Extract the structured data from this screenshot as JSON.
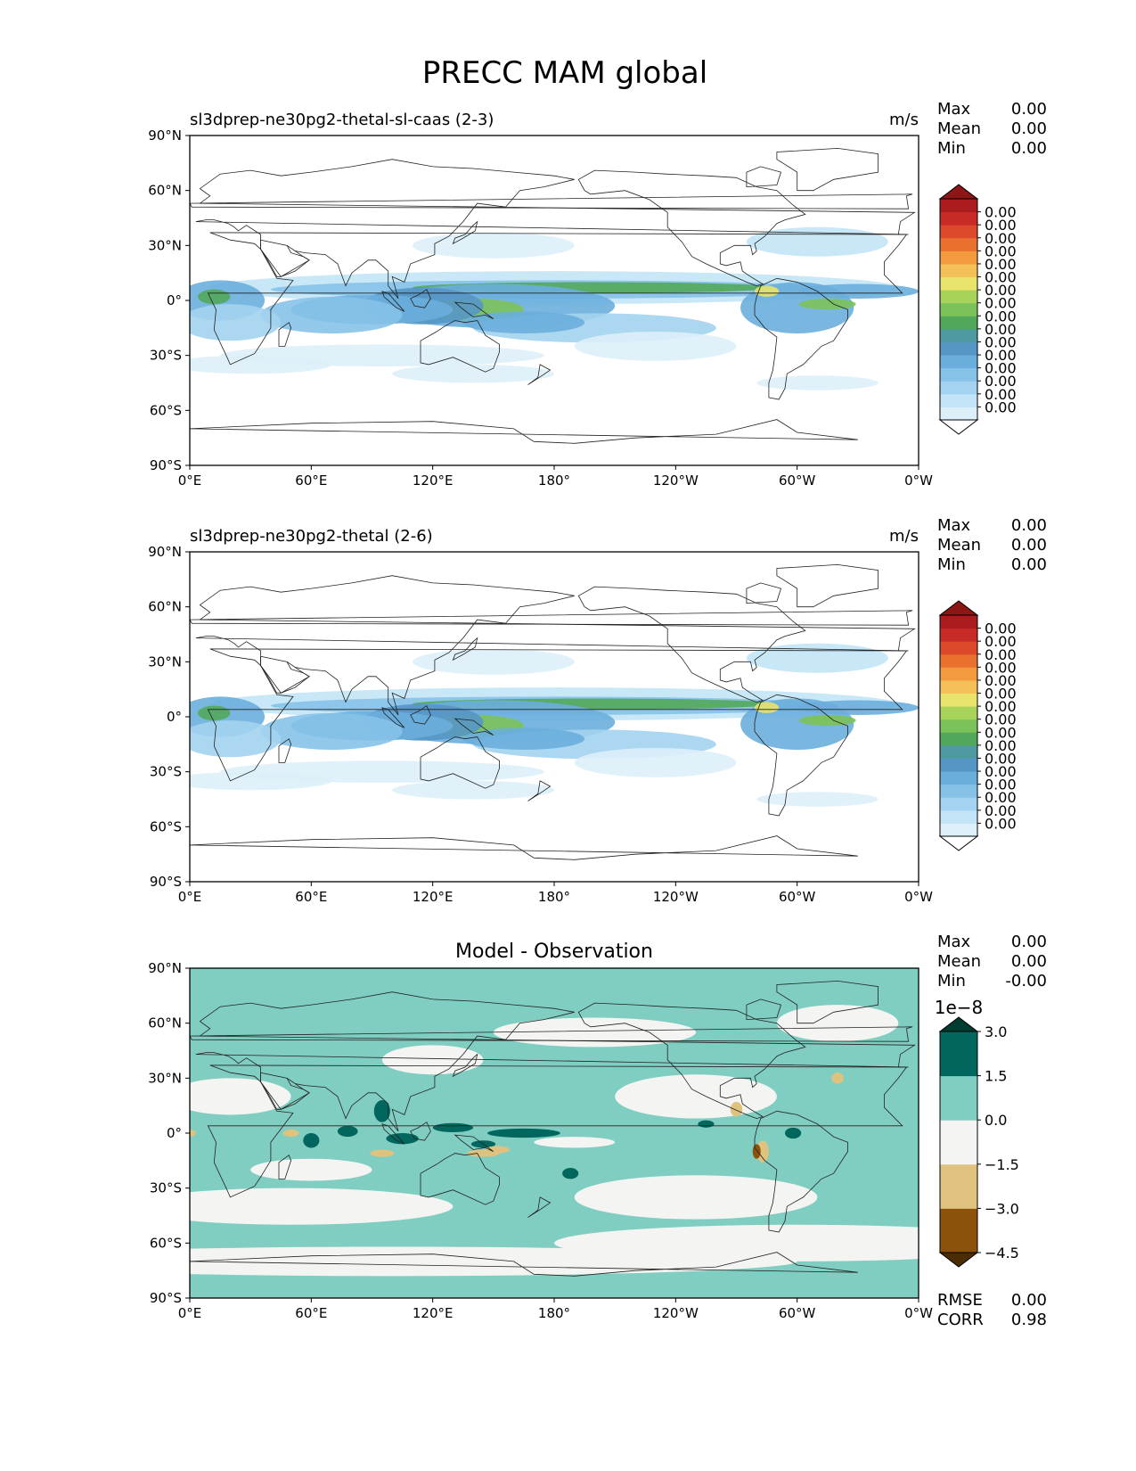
{
  "figure": {
    "title": "PRECC MAM global",
    "lon_ticks": [
      "0°E",
      "60°E",
      "120°E",
      "180°",
      "120°W",
      "60°W",
      "0°W"
    ],
    "lat_ticks": [
      "90°N",
      "60°N",
      "30°N",
      "0°",
      "30°S",
      "60°S",
      "90°S"
    ]
  },
  "panels": [
    {
      "title_left": "sl3dprep-ne30pg2-thetal-sl-caas (2-3)",
      "title_center": "",
      "units": "m/s",
      "stats": [
        {
          "label": "Max",
          "value": "0.00"
        },
        {
          "label": "Mean",
          "value": "0.00"
        },
        {
          "label": "Min",
          "value": "0.00"
        }
      ],
      "colorbar": {
        "offset_label": "",
        "colors": [
          "#ffffff",
          "#ddf0fa",
          "#c2e4f6",
          "#a3d3f0",
          "#86c2e8",
          "#6aaedd",
          "#5596c6",
          "#4e9aa0",
          "#52a85a",
          "#7cc25a",
          "#a8d35a",
          "#e8e36a",
          "#f6c058",
          "#f39a3f",
          "#ea7030",
          "#dc4a2b",
          "#c82a26",
          "#aa1c1e",
          "#8c1515"
        ],
        "tick_labels": [
          "0.00",
          "0.00",
          "0.00",
          "0.00",
          "0.00",
          "0.00",
          "0.00",
          "0.00",
          "0.00",
          "0.00",
          "0.00",
          "0.00",
          "0.00",
          "0.00",
          "0.00",
          "0.00"
        ]
      },
      "bottom_stats": []
    },
    {
      "title_left": "sl3dprep-ne30pg2-thetal (2-6)",
      "title_center": "",
      "units": "m/s",
      "stats": [
        {
          "label": "Max",
          "value": "0.00"
        },
        {
          "label": "Mean",
          "value": "0.00"
        },
        {
          "label": "Min",
          "value": "0.00"
        }
      ],
      "colorbar": {
        "offset_label": "",
        "colors": [
          "#ffffff",
          "#ddf0fa",
          "#c2e4f6",
          "#a3d3f0",
          "#86c2e8",
          "#6aaedd",
          "#5596c6",
          "#4e9aa0",
          "#52a85a",
          "#7cc25a",
          "#a8d35a",
          "#e8e36a",
          "#f6c058",
          "#f39a3f",
          "#ea7030",
          "#dc4a2b",
          "#c82a26",
          "#aa1c1e",
          "#8c1515"
        ],
        "tick_labels": [
          "0.00",
          "0.00",
          "0.00",
          "0.00",
          "0.00",
          "0.00",
          "0.00",
          "0.00",
          "0.00",
          "0.00",
          "0.00",
          "0.00",
          "0.00",
          "0.00",
          "0.00",
          "0.00"
        ]
      },
      "bottom_stats": []
    },
    {
      "title_left": "",
      "title_center": "Model - Observation",
      "units": "",
      "stats": [
        {
          "label": "Max",
          "value": "0.00"
        },
        {
          "label": "Mean",
          "value": "0.00"
        },
        {
          "label": "Min",
          "value": "-0.00"
        }
      ],
      "colorbar": {
        "offset_label": "1e−8",
        "colors": [
          "#4a2c05",
          "#8c510a",
          "#dfc27d",
          "#f4f4f2",
          "#80cdc1",
          "#01665e",
          "#003c30"
        ],
        "tick_labels": [
          "−4.5",
          "−3.0",
          "−1.5",
          "0.0",
          "1.5",
          "3.0"
        ]
      },
      "bottom_stats": [
        {
          "label": "RMSE",
          "value": "0.00"
        },
        {
          "label": "CORR",
          "value": "0.98"
        }
      ]
    }
  ],
  "chart_data": [
    {
      "type": "heatmap",
      "title": "sl3dprep-ne30pg2-thetal-sl-caas (2-3)",
      "units": "m/s",
      "xlabel": "",
      "ylabel": "",
      "xlim": [
        0,
        360
      ],
      "ylim": [
        -90,
        90
      ],
      "x_ticks": [
        "0°E",
        "60°E",
        "120°E",
        "180°",
        "120°W",
        "60°W",
        "0°W"
      ],
      "y_ticks": [
        "90°N",
        "60°N",
        "30°N",
        "0°",
        "30°S",
        "60°S",
        "90°S"
      ],
      "stats": {
        "Max": "0.00",
        "Mean": "0.00",
        "Min": "0.00"
      }
    },
    {
      "type": "heatmap",
      "title": "sl3dprep-ne30pg2-thetal (2-6)",
      "units": "m/s",
      "xlabel": "",
      "ylabel": "",
      "xlim": [
        0,
        360
      ],
      "ylim": [
        -90,
        90
      ],
      "x_ticks": [
        "0°E",
        "60°E",
        "120°E",
        "180°",
        "120°W",
        "60°W",
        "0°W"
      ],
      "y_ticks": [
        "90°N",
        "60°N",
        "30°N",
        "0°",
        "30°S",
        "60°S",
        "90°S"
      ],
      "stats": {
        "Max": "0.00",
        "Mean": "0.00",
        "Min": "0.00"
      }
    },
    {
      "type": "heatmap",
      "title": "Model - Observation",
      "xlabel": "",
      "ylabel": "",
      "xlim": [
        0,
        360
      ],
      "ylim": [
        -90,
        90
      ],
      "x_ticks": [
        "0°E",
        "60°E",
        "120°E",
        "180°",
        "120°W",
        "60°W",
        "0°W"
      ],
      "y_ticks": [
        "90°N",
        "60°N",
        "30°N",
        "0°",
        "30°S",
        "60°S",
        "90°S"
      ],
      "colorbar_levels": [
        -4.5,
        -3.0,
        -1.5,
        0.0,
        1.5,
        3.0
      ],
      "colorbar_scale": "1e−8",
      "stats": {
        "Max": "0.00",
        "Mean": "0.00",
        "Min": "-0.00",
        "RMSE": "0.00",
        "CORR": "0.98"
      }
    }
  ]
}
